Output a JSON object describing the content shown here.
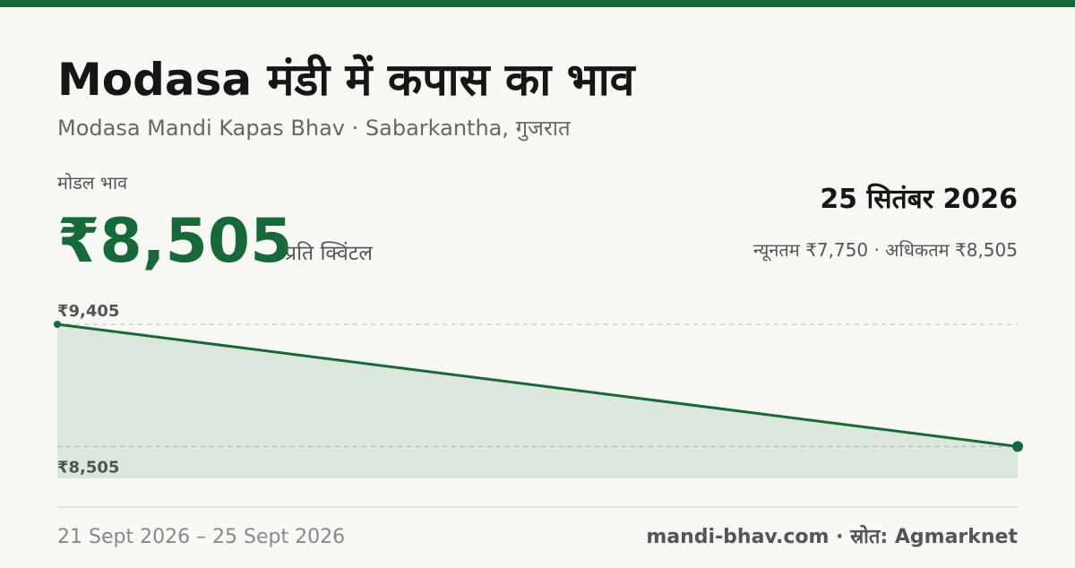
{
  "header": {
    "title": "Modasa मंडी में कपास का भाव",
    "subtitle": "Modasa Mandi Kapas Bhav · Sabarkantha, गुजरात"
  },
  "price": {
    "label": "मोडल भाव",
    "value": "₹8,505",
    "unit": "प्रति क्विंटल",
    "date": "25 सितंबर 2026",
    "range": "न्यूनतम ₹7,750 · अधिकतम ₹8,505"
  },
  "chart_data": {
    "type": "line",
    "values": [
      9405,
      8505
    ],
    "color": "#17693a",
    "ylim": [
      8270,
      9405
    ],
    "yticks": [
      {
        "value": 9405,
        "label": "₹9,405"
      },
      {
        "value": 8505,
        "label": "₹8,505"
      }
    ],
    "grid": true
  },
  "footer": {
    "date_range": "21 Sept 2026 – 25 Sept 2026",
    "source": "mandi-bhav.com · स्रोत: Agmarknet"
  }
}
